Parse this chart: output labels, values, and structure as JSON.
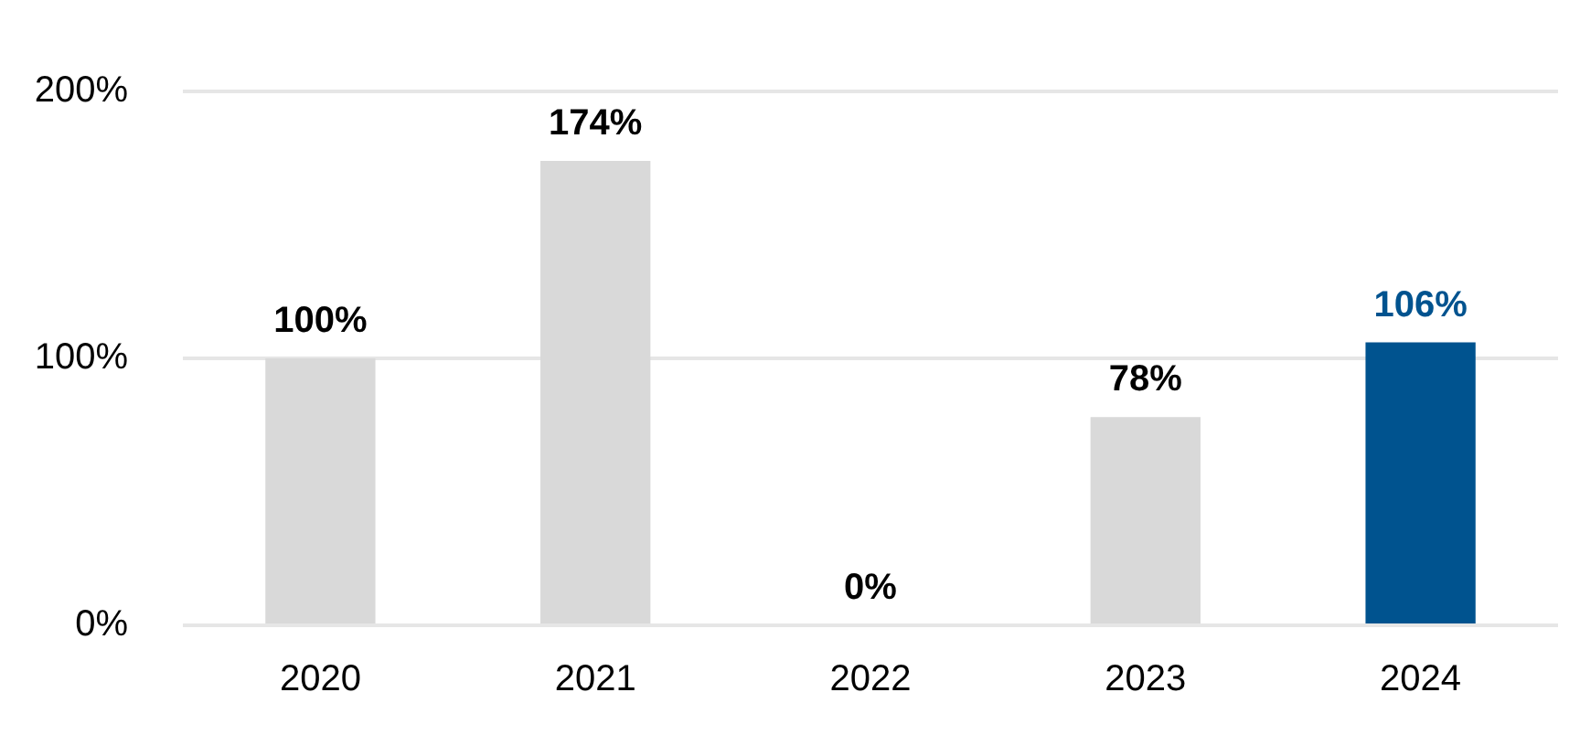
{
  "chart_data": {
    "type": "bar",
    "categories": [
      "2020",
      "2021",
      "2022",
      "2023",
      "2024"
    ],
    "values": [
      100,
      174,
      0,
      78,
      106
    ],
    "colors": [
      "#d9d9d9",
      "#d9d9d9",
      "#d9d9d9",
      "#d9d9d9",
      "#00538f"
    ],
    "ylim": [
      0,
      200
    ],
    "yticks": [
      {
        "value": 0,
        "label": "0%"
      },
      {
        "value": 100,
        "label": "100%"
      },
      {
        "value": 200,
        "label": "200%"
      }
    ],
    "grid": "y",
    "value_labels": [
      "100%",
      "174%",
      "0%",
      "78%",
      "106%"
    ],
    "legend": false
  }
}
